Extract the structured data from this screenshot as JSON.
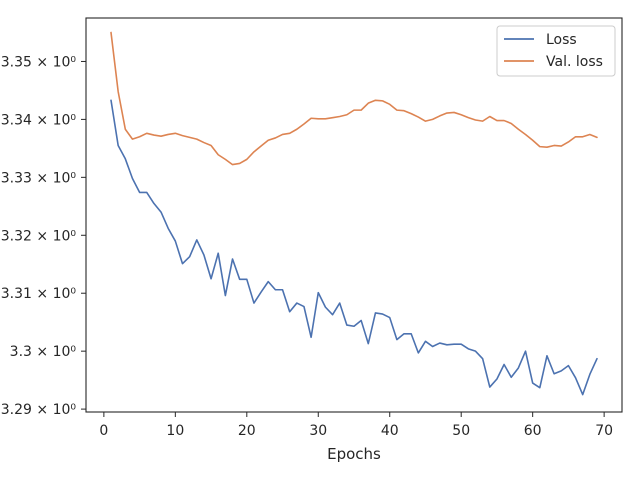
{
  "chart_data": {
    "type": "line",
    "title": "",
    "xlabel": "Epochs",
    "ylabel": "",
    "xlim": [
      -2.5,
      72.5
    ],
    "ylim": [
      3.2895,
      3.3575
    ],
    "grid": false,
    "legend_position": "top-right",
    "x_ticks": [
      0,
      10,
      20,
      30,
      40,
      50,
      60,
      70
    ],
    "x_tick_labels": [
      "0",
      "10",
      "20",
      "30",
      "40",
      "50",
      "60",
      "70"
    ],
    "y_ticks": [
      3.29,
      3.3,
      3.31,
      3.32,
      3.33,
      3.34,
      3.35
    ],
    "y_tick_labels": [
      "3.29 × 10⁰",
      "3.3 × 10⁰",
      "3.31 × 10⁰",
      "3.32 × 10⁰",
      "3.33 × 10⁰",
      "3.34 × 10⁰",
      "3.35 × 10⁰"
    ],
    "x": [
      1,
      2,
      3,
      4,
      5,
      6,
      7,
      8,
      9,
      10,
      11,
      12,
      13,
      14,
      15,
      16,
      17,
      18,
      19,
      20,
      21,
      22,
      23,
      24,
      25,
      26,
      27,
      28,
      29,
      30,
      31,
      32,
      33,
      34,
      35,
      36,
      37,
      38,
      39,
      40,
      41,
      42,
      43,
      44,
      45,
      46,
      47,
      48,
      49,
      50,
      51,
      52,
      53,
      54,
      55,
      56,
      57,
      58,
      59,
      60,
      61,
      62,
      63,
      64,
      65,
      66,
      67,
      68,
      69
    ],
    "series": [
      {
        "name": "Loss",
        "color": "#4c72b0",
        "values": [
          3.3433,
          3.3355,
          3.3332,
          3.3298,
          3.3274,
          3.3274,
          3.3255,
          3.324,
          3.3212,
          3.319,
          3.3151,
          3.3163,
          3.3192,
          3.3166,
          3.3125,
          3.3169,
          3.3096,
          3.3159,
          3.3124,
          3.3124,
          3.3083,
          3.3102,
          3.312,
          3.3106,
          3.3106,
          3.3068,
          3.3083,
          3.3077,
          3.3024,
          3.3101,
          3.3076,
          3.3063,
          3.3083,
          3.3045,
          3.3043,
          3.3053,
          3.3013,
          3.3066,
          3.3064,
          3.3058,
          3.302,
          3.303,
          3.303,
          3.2997,
          3.3017,
          3.3008,
          3.3014,
          3.3011,
          3.3012,
          3.3012,
          3.3004,
          3.3,
          3.2987,
          3.2938,
          3.2952,
          3.2977,
          3.2955,
          3.2971,
          3.3,
          3.2945,
          3.2937,
          3.2992,
          3.2961,
          3.2966,
          3.2975,
          3.2954,
          3.2925,
          3.296,
          3.2987
        ]
      },
      {
        "name": "Val. loss",
        "color": "#dd8452",
        "values": [
          3.355,
          3.3448,
          3.3383,
          3.3366,
          3.337,
          3.3376,
          3.3373,
          3.3371,
          3.3374,
          3.3376,
          3.3372,
          3.3369,
          3.3366,
          3.336,
          3.3355,
          3.3339,
          3.3331,
          3.3322,
          3.3324,
          3.3331,
          3.3344,
          3.3354,
          3.3364,
          3.3368,
          3.3374,
          3.3376,
          3.3383,
          3.3392,
          3.3402,
          3.3401,
          3.3401,
          3.3403,
          3.3405,
          3.3408,
          3.3416,
          3.3416,
          3.3428,
          3.3433,
          3.3432,
          3.3426,
          3.3416,
          3.3415,
          3.341,
          3.3404,
          3.3397,
          3.34,
          3.3406,
          3.3411,
          3.3412,
          3.3408,
          3.3403,
          3.3399,
          3.3397,
          3.3405,
          3.3398,
          3.3398,
          3.3393,
          3.3383,
          3.3374,
          3.3364,
          3.3353,
          3.3352,
          3.3355,
          3.3354,
          3.3361,
          3.337,
          3.337,
          3.3374,
          3.3369
        ]
      }
    ]
  }
}
